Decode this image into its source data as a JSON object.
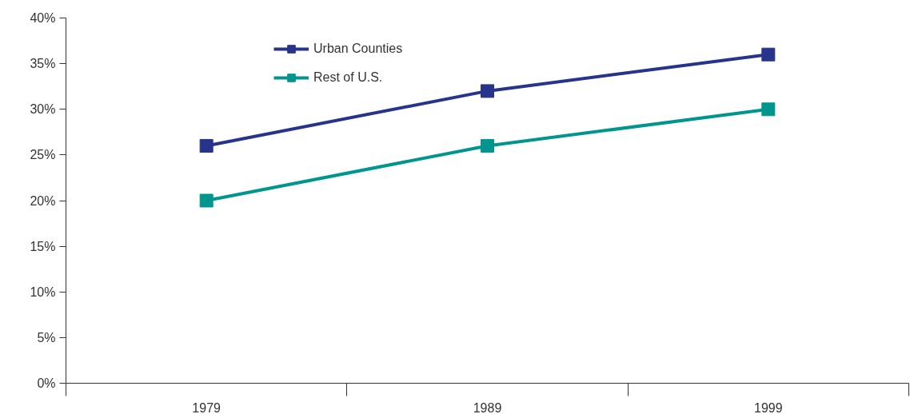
{
  "chart_data": {
    "type": "line",
    "categories": [
      "1979",
      "1989",
      "1999"
    ],
    "series": [
      {
        "name": "Urban Counties",
        "color": "#27348b",
        "values": [
          26,
          32,
          36
        ]
      },
      {
        "name": "Rest of U.S.",
        "color": "#00968f",
        "values": [
          20,
          26,
          30
        ]
      }
    ],
    "ylim": [
      0,
      40
    ],
    "yticks": [
      {
        "value": 0,
        "label": "0%"
      },
      {
        "value": 5,
        "label": "5%"
      },
      {
        "value": 10,
        "label": "10%"
      },
      {
        "value": 15,
        "label": "15%"
      },
      {
        "value": 20,
        "label": "20%"
      },
      {
        "value": 25,
        "label": "25%"
      },
      {
        "value": 30,
        "label": "30%"
      },
      {
        "value": 35,
        "label": "35%"
      },
      {
        "value": 40,
        "label": "40%"
      }
    ],
    "grid": false,
    "legend": "top left",
    "marker": "square",
    "line_style": "solid"
  }
}
